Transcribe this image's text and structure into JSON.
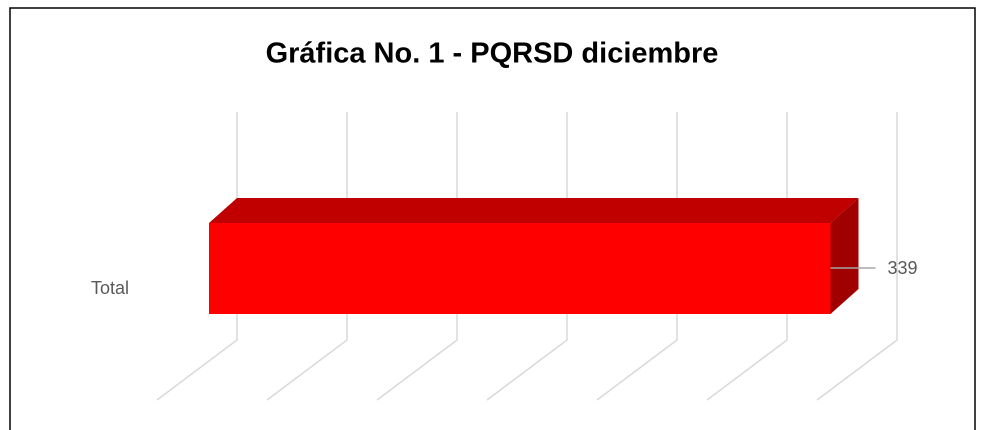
{
  "chart_data": {
    "type": "bar",
    "orientation": "horizontal",
    "title": "Gráfica No. 1 - PQRSD diciembre",
    "categories": [
      "Total"
    ],
    "values": [
      339
    ],
    "color": "#ff0000",
    "xlim": [
      0,
      360
    ],
    "xticks": [
      0,
      60,
      120,
      180,
      240,
      300,
      360
    ],
    "grid": true
  }
}
